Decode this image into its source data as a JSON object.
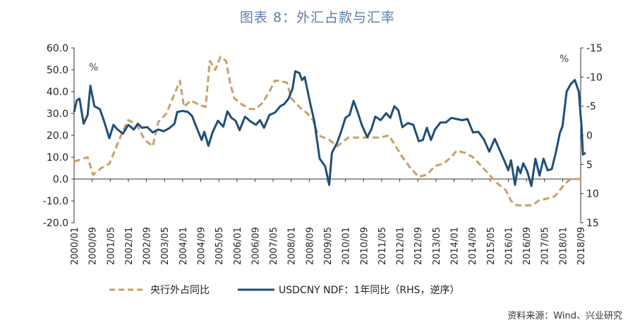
{
  "title": "图表 8：外汇占款与汇率",
  "source": "资料来源：Wind、兴业研究",
  "left_unit": "%",
  "right_unit": "%",
  "chart_data": {
    "type": "line",
    "title": "图表 8：外汇占款与汇率",
    "xlabel": "",
    "ylabel_left": "%",
    "ylabel_right": "%",
    "left_ylim": [
      -20,
      60
    ],
    "right_ylim": [
      15,
      -15
    ],
    "right_axis_reversed": true,
    "left_ticks": [
      "60.0",
      "50.0",
      "40.0",
      "30.0",
      "20.0",
      "10.0",
      "0.0",
      "-10.0",
      "-20.0"
    ],
    "right_ticks": [
      "-15",
      "-10",
      "-5",
      "0",
      "5",
      "10",
      "15"
    ],
    "x_tick_labels": [
      "2000/01",
      "2000/09",
      "2001/05",
      "2002/01",
      "2002/09",
      "2003/05",
      "2004/01",
      "2004/09",
      "2005/05",
      "2006/01",
      "2006/09",
      "2007/05",
      "2008/01",
      "2008/09",
      "2009/05",
      "2010/01",
      "2010/09",
      "2011/05",
      "2012/01",
      "2012/09",
      "2013/05",
      "2014/01",
      "2014/09",
      "2015/05",
      "2016/01",
      "2016/09",
      "2017/05",
      "2018/01",
      "2018/09"
    ],
    "x_range": [
      2000.0,
      2018.667
    ],
    "grid": false,
    "legend_position": "bottom",
    "series": [
      {
        "name": "央行外占同比",
        "axis": "left",
        "color": "#c8a066",
        "style": "dashed",
        "points": [
          [
            2000.0,
            8
          ],
          [
            2000.25,
            9
          ],
          [
            2000.5,
            10
          ],
          [
            2000.7,
            2
          ],
          [
            2001.0,
            5
          ],
          [
            2001.3,
            7
          ],
          [
            2001.5,
            13
          ],
          [
            2001.8,
            22
          ],
          [
            2002.0,
            27
          ],
          [
            2002.3,
            25
          ],
          [
            2002.6,
            18
          ],
          [
            2002.9,
            15
          ],
          [
            2003.1,
            26
          ],
          [
            2003.4,
            30
          ],
          [
            2003.6,
            36
          ],
          [
            2003.9,
            45
          ],
          [
            2004.05,
            33
          ],
          [
            2004.3,
            36
          ],
          [
            2004.6,
            34
          ],
          [
            2004.85,
            33
          ],
          [
            2005.0,
            54
          ],
          [
            2005.2,
            50
          ],
          [
            2005.4,
            56
          ],
          [
            2005.6,
            54
          ],
          [
            2005.75,
            44
          ],
          [
            2005.9,
            37
          ],
          [
            2006.2,
            34
          ],
          [
            2006.5,
            32
          ],
          [
            2006.7,
            32
          ],
          [
            2006.95,
            35
          ],
          [
            2007.2,
            40
          ],
          [
            2007.4,
            45
          ],
          [
            2007.6,
            45
          ],
          [
            2007.85,
            44
          ],
          [
            2008.0,
            37
          ],
          [
            2008.3,
            33
          ],
          [
            2008.6,
            30
          ],
          [
            2008.8,
            27
          ],
          [
            2009.0,
            20
          ],
          [
            2009.4,
            18
          ],
          [
            2009.7,
            15
          ],
          [
            2010.1,
            19
          ],
          [
            2010.4,
            19
          ],
          [
            2010.7,
            19
          ],
          [
            2011.0,
            19
          ],
          [
            2011.3,
            19
          ],
          [
            2011.6,
            20
          ],
          [
            2011.8,
            16
          ],
          [
            2012.1,
            10
          ],
          [
            2012.4,
            5
          ],
          [
            2012.7,
            1
          ],
          [
            2013.0,
            2
          ],
          [
            2013.3,
            6
          ],
          [
            2013.6,
            7
          ],
          [
            2013.9,
            10
          ],
          [
            2014.1,
            13
          ],
          [
            2014.4,
            12
          ],
          [
            2014.7,
            10
          ],
          [
            2015.0,
            6
          ],
          [
            2015.3,
            2
          ],
          [
            2015.6,
            -2
          ],
          [
            2015.9,
            -5
          ],
          [
            2016.1,
            -10
          ],
          [
            2016.3,
            -12
          ],
          [
            2016.6,
            -12
          ],
          [
            2016.9,
            -12
          ],
          [
            2017.1,
            -10
          ],
          [
            2017.4,
            -9
          ],
          [
            2017.7,
            -8
          ],
          [
            2017.9,
            -5
          ],
          [
            2018.1,
            -2
          ],
          [
            2018.3,
            0
          ],
          [
            2018.5,
            0
          ],
          [
            2018.667,
            0
          ]
        ]
      },
      {
        "name": "USDCNY NDF：1年同比（RHS，逆序）",
        "axis": "right",
        "color": "#1f4e79",
        "style": "solid",
        "points": [
          [
            2000.0,
            -4
          ],
          [
            2000.1,
            -6
          ],
          [
            2000.2,
            -6.3
          ],
          [
            2000.35,
            -2
          ],
          [
            2000.5,
            -3.5
          ],
          [
            2000.6,
            -8.5
          ],
          [
            2000.75,
            -5
          ],
          [
            2000.95,
            -4.5
          ],
          [
            2001.1,
            -2.5
          ],
          [
            2001.3,
            0.5
          ],
          [
            2001.45,
            -1.8
          ],
          [
            2001.6,
            -1
          ],
          [
            2001.8,
            -0.3
          ],
          [
            2002.0,
            -1.8
          ],
          [
            2002.2,
            -1.0
          ],
          [
            2002.35,
            -2.0
          ],
          [
            2002.5,
            -1.3
          ],
          [
            2002.7,
            -1.4
          ],
          [
            2002.9,
            -0.5
          ],
          [
            2003.1,
            -1.0
          ],
          [
            2003.3,
            -0.7
          ],
          [
            2003.5,
            -1.2
          ],
          [
            2003.7,
            -2.0
          ],
          [
            2003.8,
            -4.0
          ],
          [
            2004.0,
            -4.2
          ],
          [
            2004.2,
            -4.0
          ],
          [
            2004.35,
            -3.3
          ],
          [
            2004.5,
            -1.5
          ],
          [
            2004.7,
            0.8
          ],
          [
            2004.8,
            -0.6
          ],
          [
            2004.95,
            1.8
          ],
          [
            2005.1,
            -0.5
          ],
          [
            2005.3,
            -2.5
          ],
          [
            2005.5,
            -1.5
          ],
          [
            2005.65,
            -4.1
          ],
          [
            2005.8,
            -3.0
          ],
          [
            2005.95,
            -2.5
          ],
          [
            2006.1,
            -0.9
          ],
          [
            2006.3,
            -3.2
          ],
          [
            2006.5,
            -2.4
          ],
          [
            2006.7,
            -1.8
          ],
          [
            2006.85,
            -2.6
          ],
          [
            2007.0,
            -1.3
          ],
          [
            2007.2,
            -3.5
          ],
          [
            2007.4,
            -3.9
          ],
          [
            2007.6,
            -5.0
          ],
          [
            2007.75,
            -5.4
          ],
          [
            2007.9,
            -6.3
          ],
          [
            2008.05,
            -8.0
          ],
          [
            2008.15,
            -11.0
          ],
          [
            2008.3,
            -10.7
          ],
          [
            2008.4,
            -9.5
          ],
          [
            2008.5,
            -10
          ],
          [
            2008.7,
            -5.5
          ],
          [
            2008.85,
            -2.5
          ],
          [
            2009.05,
            4.0
          ],
          [
            2009.25,
            5.3
          ],
          [
            2009.4,
            8.5
          ],
          [
            2009.5,
            3.0
          ],
          [
            2009.7,
            1.2
          ],
          [
            2009.85,
            -0.8
          ],
          [
            2010.0,
            -3.0
          ],
          [
            2010.15,
            -3.5
          ],
          [
            2010.3,
            -5.9
          ],
          [
            2010.45,
            -4.0
          ],
          [
            2010.6,
            -1.8
          ],
          [
            2010.8,
            0.3
          ],
          [
            2010.95,
            -1.0
          ],
          [
            2011.1,
            -3.2
          ],
          [
            2011.3,
            -2.6
          ],
          [
            2011.5,
            -3.8
          ],
          [
            2011.65,
            -3.0
          ],
          [
            2011.8,
            -5.0
          ],
          [
            2011.95,
            -4.3
          ],
          [
            2012.1,
            -1.4
          ],
          [
            2012.3,
            -2.1
          ],
          [
            2012.5,
            -1.8
          ],
          [
            2012.7,
            1.0
          ],
          [
            2012.85,
            0.8
          ],
          [
            2013.0,
            -1.3
          ],
          [
            2013.15,
            0.8
          ],
          [
            2013.3,
            -1.0
          ],
          [
            2013.5,
            -2.2
          ],
          [
            2013.7,
            -2.2
          ],
          [
            2013.9,
            -3.0
          ],
          [
            2014.1,
            -2.8
          ],
          [
            2014.3,
            -2.6
          ],
          [
            2014.5,
            -2.8
          ],
          [
            2014.7,
            -0.5
          ],
          [
            2014.9,
            -0.6
          ],
          [
            2015.1,
            0.7
          ],
          [
            2015.3,
            2.8
          ],
          [
            2015.5,
            0.6
          ],
          [
            2015.7,
            2.7
          ],
          [
            2015.85,
            4.3
          ],
          [
            2016.0,
            6.0
          ],
          [
            2016.1,
            4.3
          ],
          [
            2016.25,
            8.5
          ],
          [
            2016.35,
            5.4
          ],
          [
            2016.45,
            6.5
          ],
          [
            2016.55,
            4.8
          ],
          [
            2016.7,
            6.2
          ],
          [
            2016.85,
            8.7
          ],
          [
            2017.0,
            4.0
          ],
          [
            2017.15,
            6.9
          ],
          [
            2017.3,
            4.0
          ],
          [
            2017.45,
            6.0
          ],
          [
            2017.6,
            5.8
          ],
          [
            2017.75,
            3.0
          ],
          [
            2017.9,
            -0.4
          ],
          [
            2018.0,
            -1.6
          ],
          [
            2018.15,
            -7.5
          ],
          [
            2018.3,
            -8.8
          ],
          [
            2018.45,
            -9.5
          ],
          [
            2018.6,
            -7.5
          ],
          [
            2018.667,
            -3.3
          ],
          [
            2018.7,
            -1.5
          ],
          [
            2018.75,
            3.3
          ],
          [
            2018.85,
            3.0
          ]
        ]
      }
    ]
  }
}
